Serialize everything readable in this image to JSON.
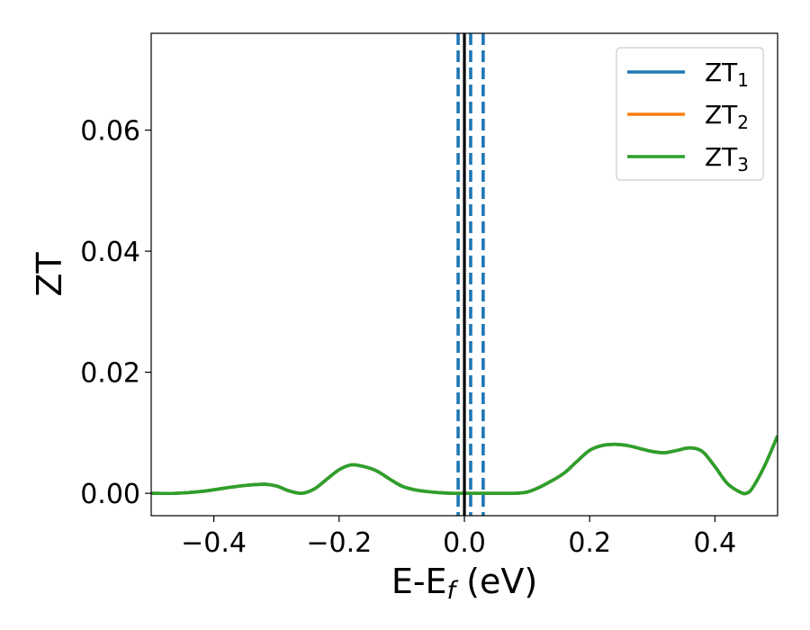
{
  "chart_data": {
    "type": "line",
    "xlabel_main": "E-E",
    "xlabel_sub": "f",
    "xlabel_unit": " (eV)",
    "ylabel": "ZT",
    "xlim": [
      -0.5,
      0.5
    ],
    "ylim": [
      -0.0037,
      0.076
    ],
    "x_ticks": [
      -0.4,
      -0.2,
      0.0,
      0.2,
      0.4
    ],
    "x_tick_labels": [
      "−0.4",
      "−0.2",
      "0.0",
      "0.2",
      "0.4"
    ],
    "y_ticks": [
      0.0,
      0.02,
      0.04,
      0.06
    ],
    "y_tick_labels": [
      "0.00",
      "0.02",
      "0.04",
      "0.06"
    ],
    "grid": false,
    "legend_position": "top-right",
    "series": [
      {
        "name": "ZT",
        "subscript": "1",
        "color": "#1f77b4",
        "x": [
          -0.5,
          -0.46,
          -0.42,
          -0.38,
          -0.35,
          -0.32,
          -0.3,
          -0.28,
          -0.26,
          -0.24,
          -0.22,
          -0.2,
          -0.18,
          -0.16,
          -0.14,
          -0.12,
          -0.1,
          -0.08,
          -0.06,
          -0.04,
          -0.02,
          0.0,
          0.02,
          0.04,
          0.06,
          0.08,
          0.1,
          0.12,
          0.14,
          0.16,
          0.18,
          0.2,
          0.22,
          0.24,
          0.26,
          0.28,
          0.3,
          0.32,
          0.34,
          0.36,
          0.38,
          0.4,
          0.42,
          0.44,
          0.45,
          0.46,
          0.48,
          0.5
        ],
        "y": [
          0.0,
          0.0,
          0.0003,
          0.0009,
          0.0013,
          0.0015,
          0.0012,
          0.0004,
          0.0,
          0.0007,
          0.0023,
          0.0039,
          0.0047,
          0.0044,
          0.0037,
          0.0024,
          0.0012,
          0.0006,
          0.0003,
          0.0001,
          0.0,
          0.0,
          0.0,
          0.0,
          0.0,
          0.0,
          0.0002,
          0.001,
          0.0021,
          0.0034,
          0.0053,
          0.0071,
          0.0079,
          0.0081,
          0.0079,
          0.0074,
          0.0069,
          0.0067,
          0.0071,
          0.0075,
          0.0069,
          0.0044,
          0.0016,
          0.0002,
          0.0,
          0.0009,
          0.0047,
          0.0095
        ]
      },
      {
        "name": "ZT",
        "subscript": "2",
        "color": "#ff7f0e",
        "x": [
          -0.5,
          -0.46,
          -0.42,
          -0.38,
          -0.35,
          -0.32,
          -0.3,
          -0.28,
          -0.26,
          -0.24,
          -0.22,
          -0.2,
          -0.18,
          -0.16,
          -0.14,
          -0.12,
          -0.1,
          -0.08,
          -0.06,
          -0.04,
          -0.02,
          0.0,
          0.02,
          0.04,
          0.06,
          0.08,
          0.1,
          0.12,
          0.14,
          0.16,
          0.18,
          0.2,
          0.22,
          0.24,
          0.26,
          0.28,
          0.3,
          0.32,
          0.34,
          0.36,
          0.38,
          0.4,
          0.42,
          0.44,
          0.45,
          0.46,
          0.48,
          0.5
        ],
        "y": [
          0.0,
          0.0,
          0.0003,
          0.0009,
          0.0013,
          0.0015,
          0.0012,
          0.0004,
          0.0,
          0.0007,
          0.0023,
          0.0039,
          0.0047,
          0.0044,
          0.0037,
          0.0024,
          0.0012,
          0.0006,
          0.0003,
          0.0001,
          0.0,
          0.0,
          0.0,
          0.0,
          0.0,
          0.0,
          0.0002,
          0.001,
          0.0021,
          0.0034,
          0.0053,
          0.0071,
          0.0079,
          0.0081,
          0.0079,
          0.0074,
          0.0069,
          0.0067,
          0.0071,
          0.0075,
          0.0069,
          0.0044,
          0.0016,
          0.0002,
          0.0,
          0.0009,
          0.0047,
          0.0095
        ]
      },
      {
        "name": "ZT",
        "subscript": "3",
        "color": "#2ca02c",
        "x": [
          -0.5,
          -0.46,
          -0.42,
          -0.38,
          -0.35,
          -0.32,
          -0.3,
          -0.28,
          -0.26,
          -0.24,
          -0.22,
          -0.2,
          -0.18,
          -0.16,
          -0.14,
          -0.12,
          -0.1,
          -0.08,
          -0.06,
          -0.04,
          -0.02,
          0.0,
          0.02,
          0.04,
          0.06,
          0.08,
          0.1,
          0.12,
          0.14,
          0.16,
          0.18,
          0.2,
          0.22,
          0.24,
          0.26,
          0.28,
          0.3,
          0.32,
          0.34,
          0.36,
          0.38,
          0.4,
          0.42,
          0.44,
          0.45,
          0.46,
          0.48,
          0.5
        ],
        "y": [
          0.0,
          0.0,
          0.0003,
          0.0009,
          0.0013,
          0.0015,
          0.0012,
          0.0004,
          0.0,
          0.0007,
          0.0023,
          0.0039,
          0.0047,
          0.0044,
          0.0037,
          0.0024,
          0.0012,
          0.0006,
          0.0003,
          0.0001,
          0.0,
          0.0,
          0.0,
          0.0,
          0.0,
          0.0,
          0.0002,
          0.001,
          0.0021,
          0.0034,
          0.0053,
          0.0071,
          0.0079,
          0.0081,
          0.0079,
          0.0074,
          0.0069,
          0.0067,
          0.0071,
          0.0075,
          0.0069,
          0.0044,
          0.0016,
          0.0002,
          0.0,
          0.0009,
          0.0047,
          0.0095
        ]
      }
    ],
    "vertical_lines": [
      {
        "x": 0.0,
        "style": "solid",
        "color": "#000000"
      },
      {
        "x": -0.01,
        "style": "dashed",
        "color": "#1f77b4"
      },
      {
        "x": 0.01,
        "style": "dashed",
        "color": "#1f77b4"
      },
      {
        "x": 0.03,
        "style": "dashed",
        "color": "#1f77b4"
      }
    ]
  }
}
